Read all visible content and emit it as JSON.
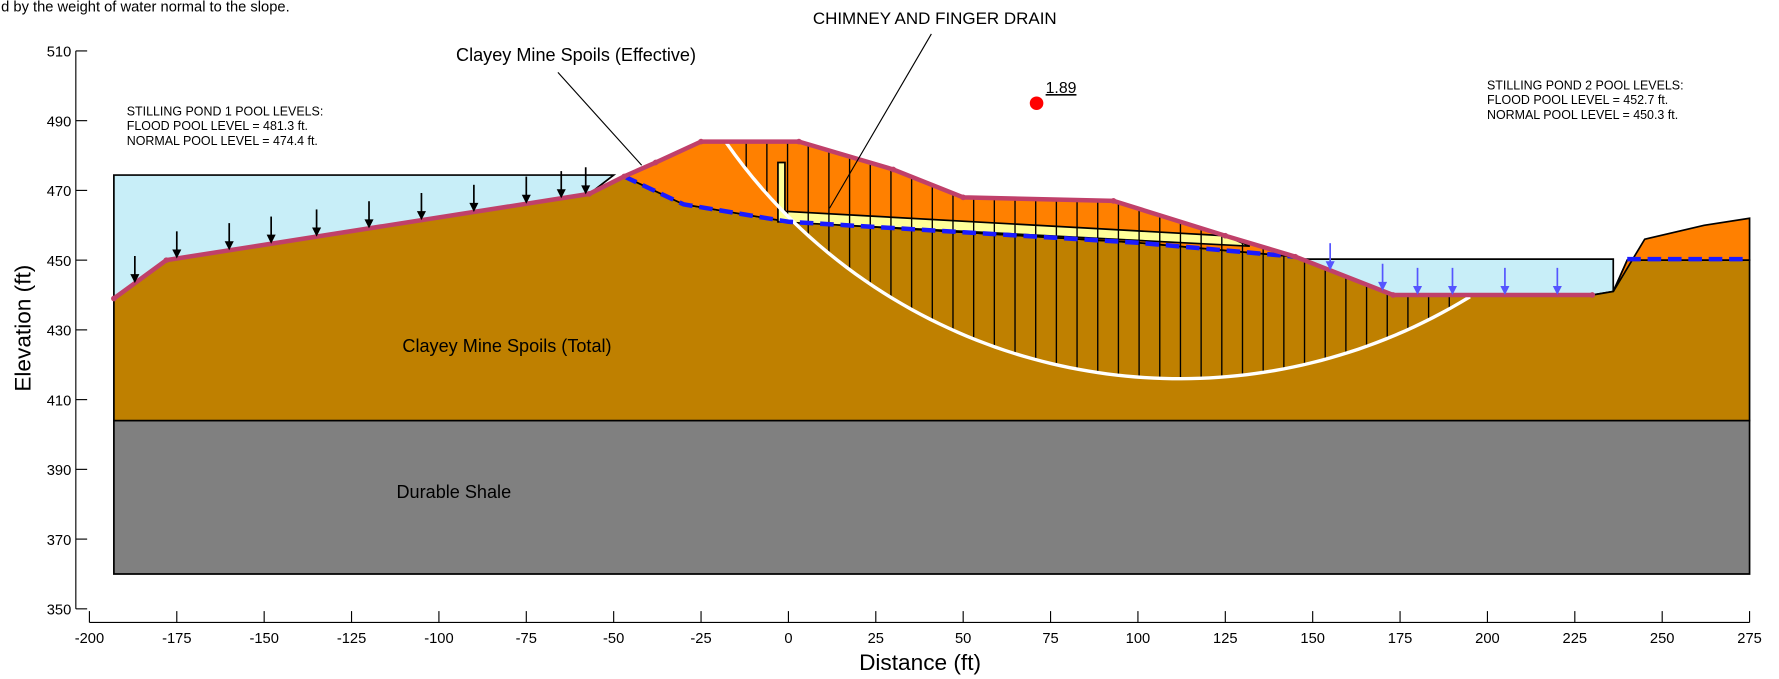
{
  "chart_data": {
    "type": "cross-section",
    "note": "d by the weight of water normal to the slope.",
    "xlabel": "Distance (ft)",
    "ylabel": "Elevation (ft)",
    "xlim": [
      -200,
      275
    ],
    "ylim": [
      350,
      510
    ],
    "xticks": [
      -200,
      -175,
      -150,
      -125,
      -100,
      -75,
      -50,
      -25,
      0,
      25,
      50,
      75,
      100,
      125,
      150,
      175,
      200,
      225,
      250,
      275
    ],
    "yticks": [
      350,
      370,
      390,
      410,
      430,
      450,
      470,
      490,
      510
    ],
    "regions": [
      {
        "color": "#c8eef8",
        "x": [
          -193,
          -50,
          -57,
          -178,
          -193
        ],
        "y": [
          474.4,
          474.4,
          469,
          450,
          439
        ]
      },
      {
        "color": "#c8eef8",
        "x": [
          145,
          236,
          236,
          230,
          173
        ],
        "y": [
          450.3,
          450.3,
          441,
          440,
          440
        ]
      },
      {
        "name": "Durable Shale",
        "color": "#808080",
        "x": [
          -193,
          275,
          275,
          -193
        ],
        "y": [
          360,
          360,
          404,
          404
        ]
      },
      {
        "name": "Clayey Mine Spoils (Total)",
        "color": "#bf8000",
        "x": [
          -193,
          -193,
          -178,
          -57,
          -47,
          -30,
          0,
          50,
          100,
          145,
          173,
          230,
          236,
          240,
          275,
          275
        ],
        "y": [
          404,
          439,
          450,
          469,
          474,
          466,
          461,
          458,
          455,
          451,
          440,
          440,
          441,
          450,
          450,
          404
        ]
      },
      {
        "name": "Clayey Mine Spoils (Effective)",
        "color": "#ff8000",
        "x": [
          -47,
          -38,
          -25,
          3,
          30,
          50,
          93,
          125,
          145,
          100,
          50,
          0,
          -30
        ],
        "y": [
          474,
          478,
          484,
          484,
          476,
          468,
          467,
          457,
          451,
          455,
          458,
          461,
          466
        ]
      },
      {
        "color": "#ff8000",
        "x": [
          236,
          245,
          262,
          275,
          275,
          240
        ],
        "y": [
          441,
          456,
          460,
          462,
          450,
          450
        ]
      },
      {
        "name": "CHIMNEY AND FINGER DRAIN",
        "color": "#ffff99",
        "x": [
          -3,
          -1,
          -1,
          125,
          132,
          -3
        ],
        "y": [
          478,
          478,
          464,
          457,
          454,
          461
        ]
      }
    ],
    "ground_surface": {
      "color": "#c0406a",
      "x": [
        -193,
        -178,
        -57,
        -47,
        -38,
        -25,
        3,
        30,
        50,
        93,
        125,
        145,
        173,
        230
      ],
      "y": [
        439,
        450,
        469,
        474,
        478,
        484,
        484,
        476,
        468,
        467,
        457,
        451,
        440,
        440
      ]
    },
    "phreatic_lines": [
      {
        "color": "#1a1aff",
        "x": [
          -47,
          -30,
          0,
          50,
          100,
          145
        ],
        "y": [
          474,
          466,
          461,
          458,
          455,
          451
        ]
      },
      {
        "color": "#1a1aff",
        "x": [
          240,
          275
        ],
        "y": [
          450.3,
          450.3
        ]
      }
    ],
    "slip_surface": {
      "center_x": 112,
      "center_y": 574.3,
      "radius": 158.3,
      "x_start": -18,
      "x_end": 195
    },
    "critical_center": {
      "x": 71,
      "y": 495,
      "factor_of_safety": 1.89,
      "label": "1.89"
    },
    "pond_1": [
      "STILLING POND 1 POOL LEVELS:",
      "FLOOD POOL LEVEL = 481.3 ft.",
      "NORMAL POOL LEVEL = 474.4 ft."
    ],
    "pond_2": [
      "STILLING POND 2 POOL LEVELS:",
      "FLOOD POOL LEVEL = 452.7 ft.",
      "NORMAL POOL LEVEL = 450.3 ft."
    ]
  }
}
